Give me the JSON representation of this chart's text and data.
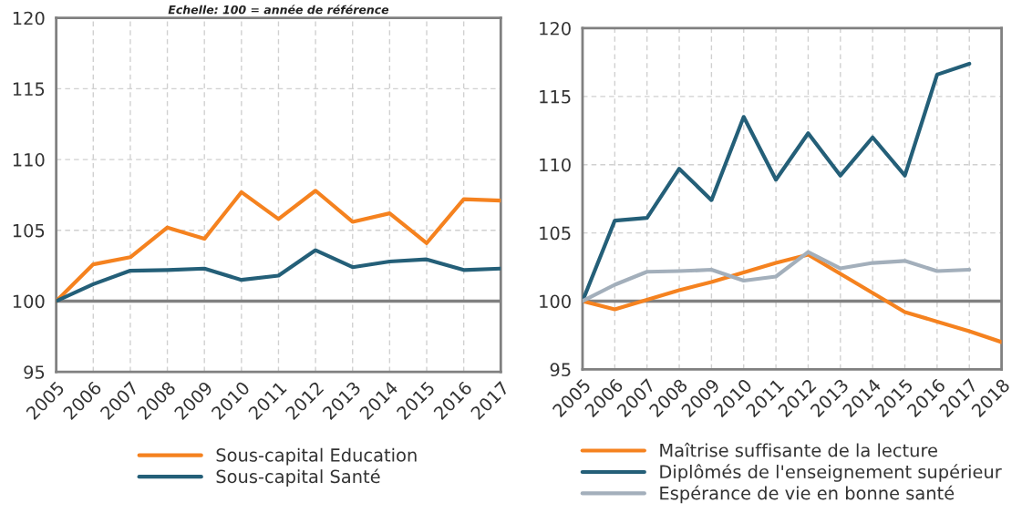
{
  "chart_data": [
    {
      "type": "line",
      "subtitle": "Echelle: 100 = année de référence",
      "categories": [
        "2005",
        "2006",
        "2007",
        "2008",
        "2009",
        "2010",
        "2011",
        "2012",
        "2013",
        "2014",
        "2015",
        "2016",
        "2017"
      ],
      "series": [
        {
          "name": "Sous-capital Education",
          "color": "#f5821f",
          "values": [
            100,
            102.6,
            103.1,
            105.2,
            104.4,
            107.7,
            105.8,
            107.8,
            105.6,
            106.2,
            104.1,
            107.2,
            107.1
          ]
        },
        {
          "name": "Sous-capital Santé",
          "color": "#245f78",
          "values": [
            100,
            101.2,
            102.15,
            102.2,
            102.3,
            101.5,
            101.8,
            103.6,
            102.4,
            102.8,
            102.95,
            102.2,
            102.3
          ]
        }
      ],
      "ylim": [
        95,
        120
      ],
      "yticks": [
        95,
        100,
        105,
        110,
        115,
        120
      ],
      "grid": true,
      "legend": "bottom",
      "line_style": "solid",
      "ref_lines": [
        {
          "axis": "y",
          "value": 100,
          "color": "#808080"
        }
      ]
    },
    {
      "type": "line",
      "categories": [
        "2005",
        "2006",
        "2007",
        "2008",
        "2009",
        "2010",
        "2011",
        "2012",
        "2013",
        "2014",
        "2015",
        "2016",
        "2017",
        "2018"
      ],
      "series": [
        {
          "name": "Maîtrise suffisante de la lecture",
          "color": "#f5821f",
          "values": [
            100,
            99.4,
            100.1,
            100.8,
            101.4,
            102.1,
            102.8,
            103.4,
            102.0,
            100.6,
            99.2,
            98.5,
            97.8,
            97.0
          ]
        },
        {
          "name": "Diplômés de l'enseignement supérieur",
          "color": "#245f78",
          "values": [
            100,
            105.9,
            106.1,
            109.7,
            107.4,
            113.5,
            108.9,
            112.3,
            109.2,
            112.0,
            109.2,
            116.6,
            117.4,
            null
          ]
        },
        {
          "name": "Espérance de vie en bonne santé",
          "color": "#a3afbb",
          "values": [
            100,
            101.2,
            102.15,
            102.2,
            102.3,
            101.5,
            101.8,
            103.6,
            102.4,
            102.8,
            102.95,
            102.2,
            102.3,
            null
          ]
        }
      ],
      "ylim": [
        95,
        120
      ],
      "yticks": [
        95,
        100,
        105,
        110,
        115,
        120
      ],
      "grid": true,
      "legend": "bottom",
      "line_style": "solid",
      "ref_lines": [
        {
          "axis": "y",
          "value": 100,
          "color": "#808080"
        }
      ]
    }
  ]
}
